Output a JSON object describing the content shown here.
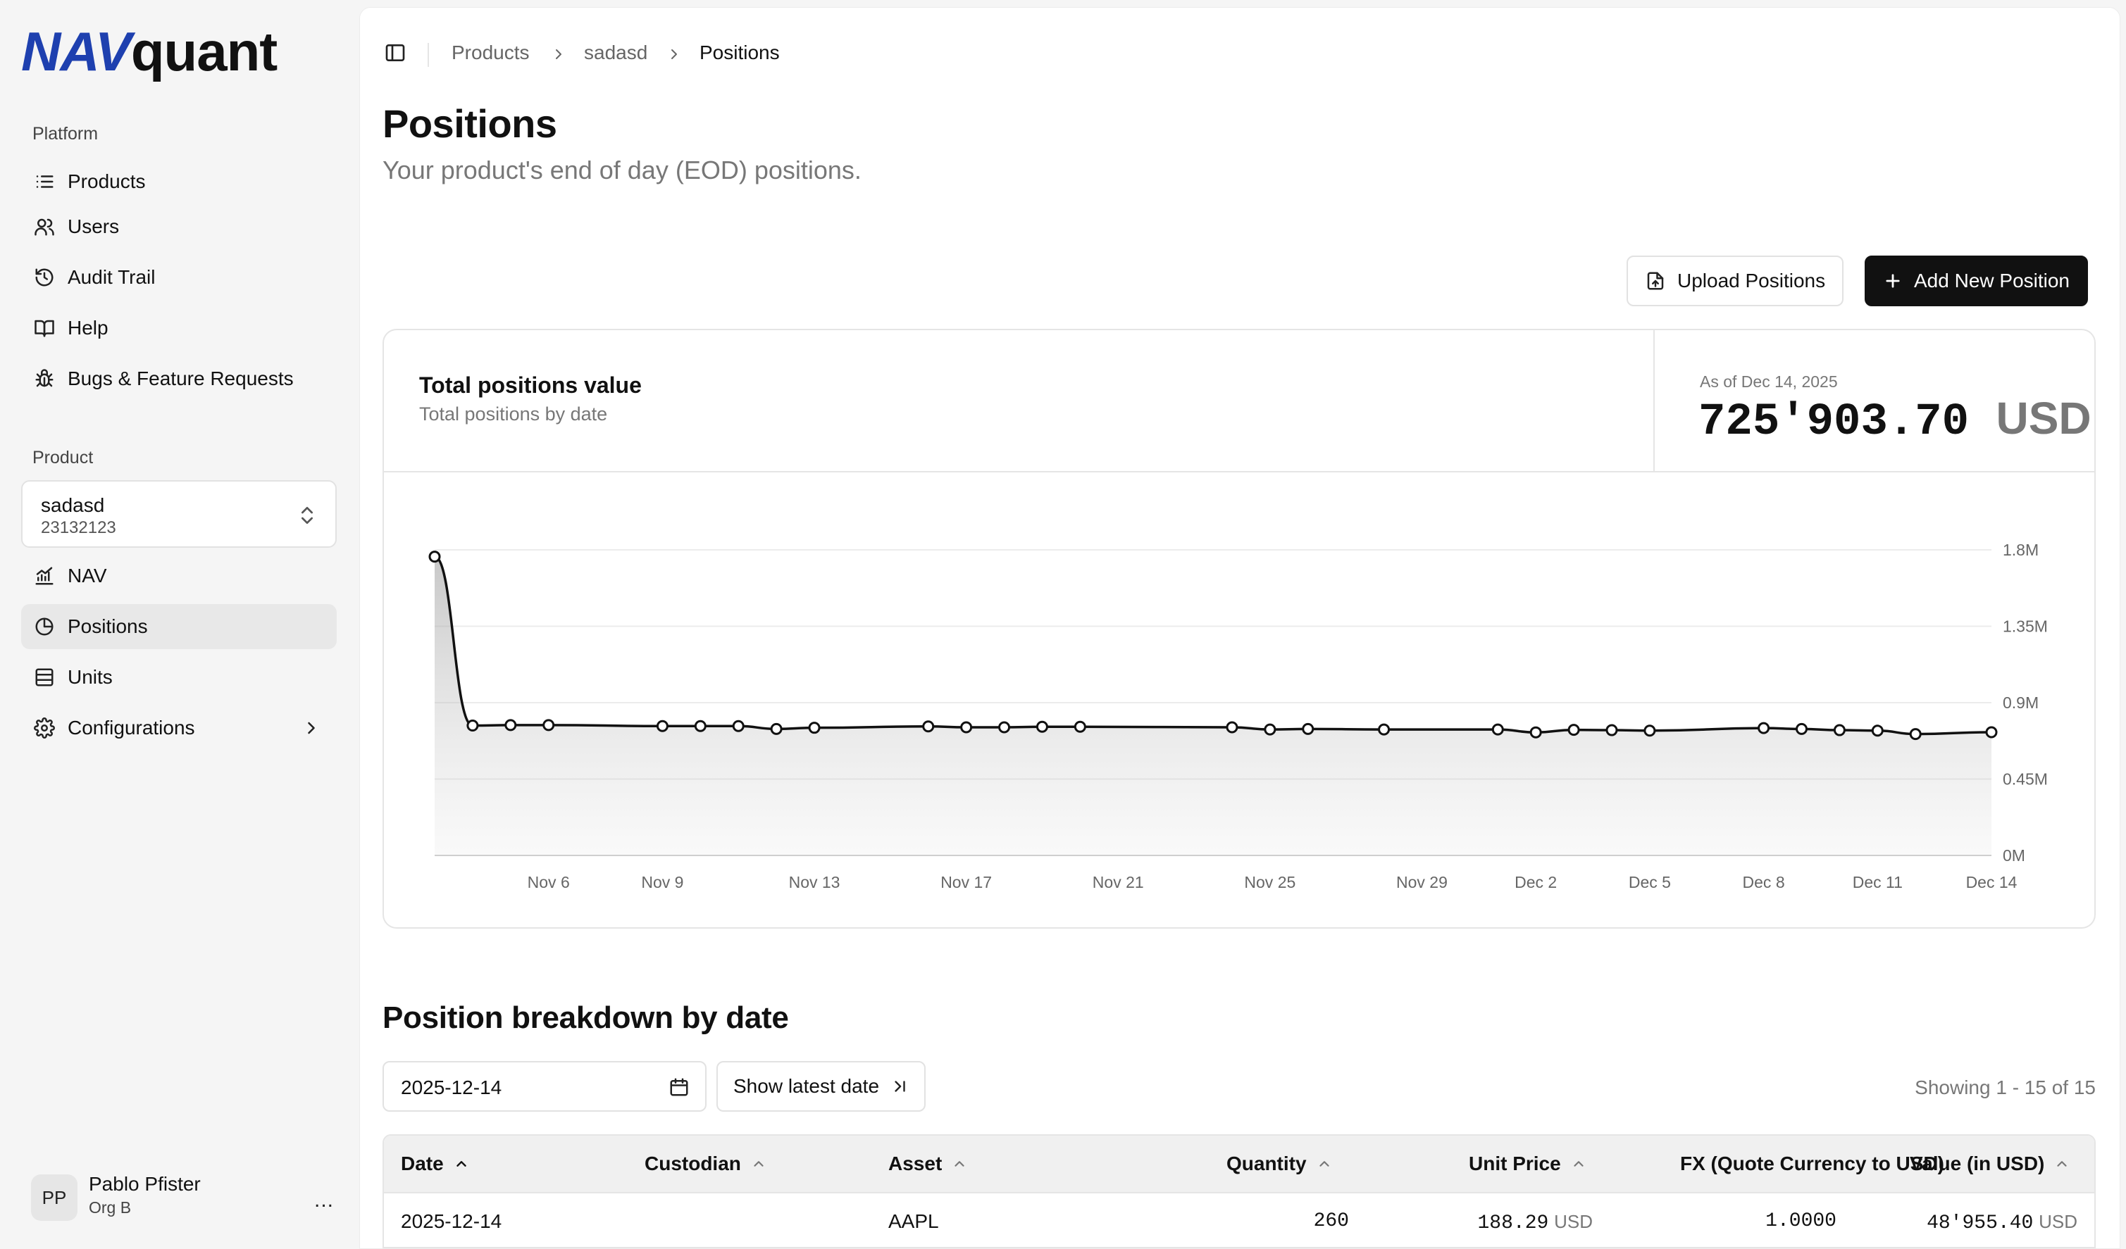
{
  "brand": {
    "logo_nav": "NAV",
    "logo_quant": "quant"
  },
  "sidebar": {
    "platform_label": "Platform",
    "platform_items": [
      {
        "label": "Products",
        "icon": "list-icon"
      },
      {
        "label": "Users",
        "icon": "users-icon"
      },
      {
        "label": "Audit Trail",
        "icon": "history-icon"
      },
      {
        "label": "Help",
        "icon": "book-icon"
      },
      {
        "label": "Bugs & Feature Requests",
        "icon": "bug-icon"
      }
    ],
    "product_label": "Product",
    "product_selector": {
      "name": "sadasd",
      "id": "23132123"
    },
    "product_items": [
      {
        "label": "NAV",
        "icon": "chart-line-icon"
      },
      {
        "label": "Positions",
        "icon": "pie-chart-icon",
        "active": true
      },
      {
        "label": "Units",
        "icon": "database-icon"
      },
      {
        "label": "Configurations",
        "icon": "gear-icon"
      }
    ],
    "user": {
      "initials": "PP",
      "name": "Pablo Pfister",
      "org": "Org B",
      "menu": "..."
    }
  },
  "breadcrumb": [
    "Products",
    "sadasd",
    "Positions"
  ],
  "page": {
    "title": "Positions",
    "subtitle": "Your product's end of day (EOD) positions."
  },
  "actions": {
    "upload": "Upload Positions",
    "add": "Add New Position"
  },
  "summary": {
    "title": "Total positions value",
    "description": "Total positions by date",
    "as_of": "As of Dec 14, 2025",
    "value": "725'903.70",
    "currency": "USD"
  },
  "chart_data": {
    "type": "area",
    "title": "Total positions value",
    "x_tick_labels": [
      "Nov 6",
      "Nov 9",
      "Nov 13",
      "Nov 17",
      "Nov 21",
      "Nov 25",
      "Nov 29",
      "Dec 2",
      "Dec 5",
      "Dec 8",
      "Dec 11",
      "Dec 14"
    ],
    "y_tick_labels": [
      "0M",
      "0.45M",
      "0.9M",
      "1.35M",
      "1.8M"
    ],
    "ylim": [
      0,
      1800000
    ],
    "x_range": [
      "2025-11-03",
      "2025-12-14"
    ],
    "points": [
      {
        "x": "2025-11-03",
        "y": 1760000
      },
      {
        "x": "2025-11-04",
        "y": 765000
      },
      {
        "x": "2025-11-05",
        "y": 768000
      },
      {
        "x": "2025-11-06",
        "y": 768000
      },
      {
        "x": "2025-11-09",
        "y": 762000
      },
      {
        "x": "2025-11-10",
        "y": 762000
      },
      {
        "x": "2025-11-11",
        "y": 762000
      },
      {
        "x": "2025-11-12",
        "y": 745000
      },
      {
        "x": "2025-11-13",
        "y": 752000
      },
      {
        "x": "2025-11-16",
        "y": 760000
      },
      {
        "x": "2025-11-17",
        "y": 755000
      },
      {
        "x": "2025-11-18",
        "y": 755000
      },
      {
        "x": "2025-11-19",
        "y": 758000
      },
      {
        "x": "2025-11-20",
        "y": 758000
      },
      {
        "x": "2025-11-24",
        "y": 755000
      },
      {
        "x": "2025-11-25",
        "y": 742000
      },
      {
        "x": "2025-11-26",
        "y": 745000
      },
      {
        "x": "2025-11-28",
        "y": 742000
      },
      {
        "x": "2025-12-01",
        "y": 742000
      },
      {
        "x": "2025-12-02",
        "y": 725000
      },
      {
        "x": "2025-12-03",
        "y": 740000
      },
      {
        "x": "2025-12-04",
        "y": 738000
      },
      {
        "x": "2025-12-05",
        "y": 735000
      },
      {
        "x": "2025-12-08",
        "y": 750000
      },
      {
        "x": "2025-12-09",
        "y": 745000
      },
      {
        "x": "2025-12-10",
        "y": 738000
      },
      {
        "x": "2025-12-11",
        "y": 735000
      },
      {
        "x": "2025-12-12",
        "y": 715000
      },
      {
        "x": "2025-12-14",
        "y": 725903.7
      }
    ],
    "grid": true
  },
  "breakdown": {
    "title": "Position breakdown by date",
    "date_value": "2025-12-14",
    "show_latest": "Show latest date",
    "showing": "Showing 1 - 15 of 15",
    "columns": [
      "Date",
      "Custodian",
      "Asset",
      "Quantity",
      "Unit Price",
      "FX (Quote Currency to USD)",
      "Value (in USD)"
    ],
    "rows": [
      {
        "date": "2025-12-14",
        "custodian": "",
        "asset": "AAPL",
        "quantity": "260",
        "unit_price": "188.29",
        "unit_price_ccy": "USD",
        "fx": "1.0000",
        "value": "48'955.40",
        "value_ccy": "USD"
      }
    ]
  }
}
